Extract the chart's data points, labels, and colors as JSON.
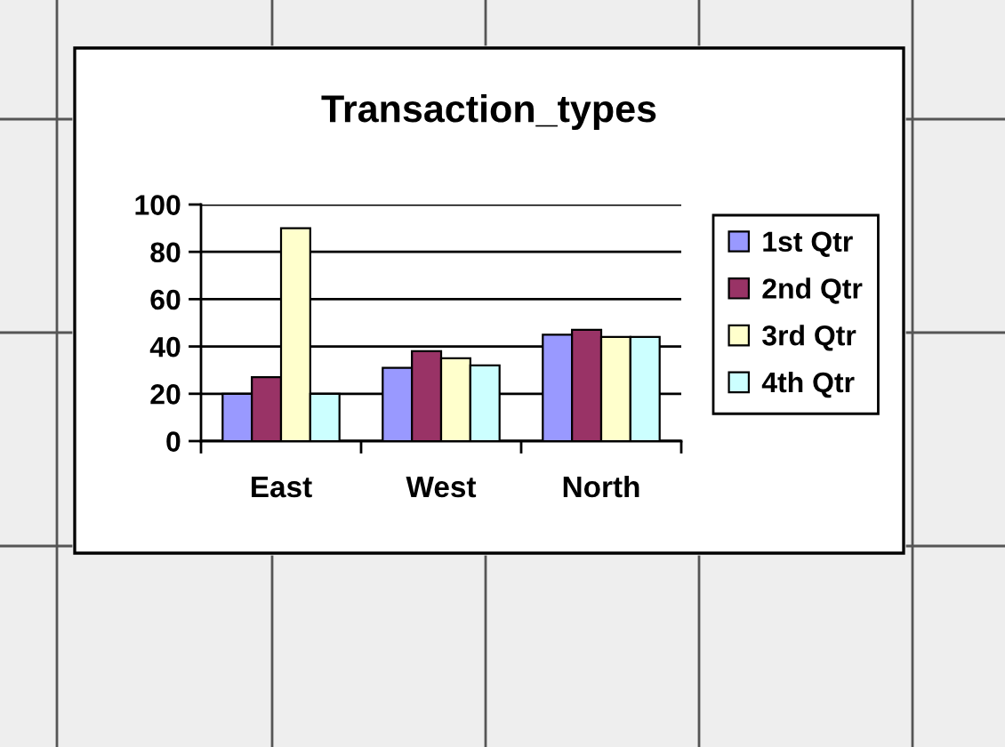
{
  "chart_data": {
    "type": "bar",
    "title": "Transaction_types",
    "categories": [
      "East",
      "West",
      "North"
    ],
    "series": [
      {
        "name": "1st Qtr",
        "color": "#9999ff",
        "values": [
          20,
          31,
          45
        ]
      },
      {
        "name": "2nd Qtr",
        "color": "#993366",
        "values": [
          27,
          38,
          47
        ]
      },
      {
        "name": "3rd Qtr",
        "color": "#ffffcc",
        "values": [
          90,
          35,
          44
        ]
      },
      {
        "name": "4th Qtr",
        "color": "#ccffff",
        "values": [
          20,
          32,
          44
        ]
      }
    ],
    "ylim": [
      0,
      100
    ],
    "yticks": [
      0,
      20,
      40,
      60,
      80,
      100
    ],
    "grid": "y",
    "legend": "right"
  }
}
